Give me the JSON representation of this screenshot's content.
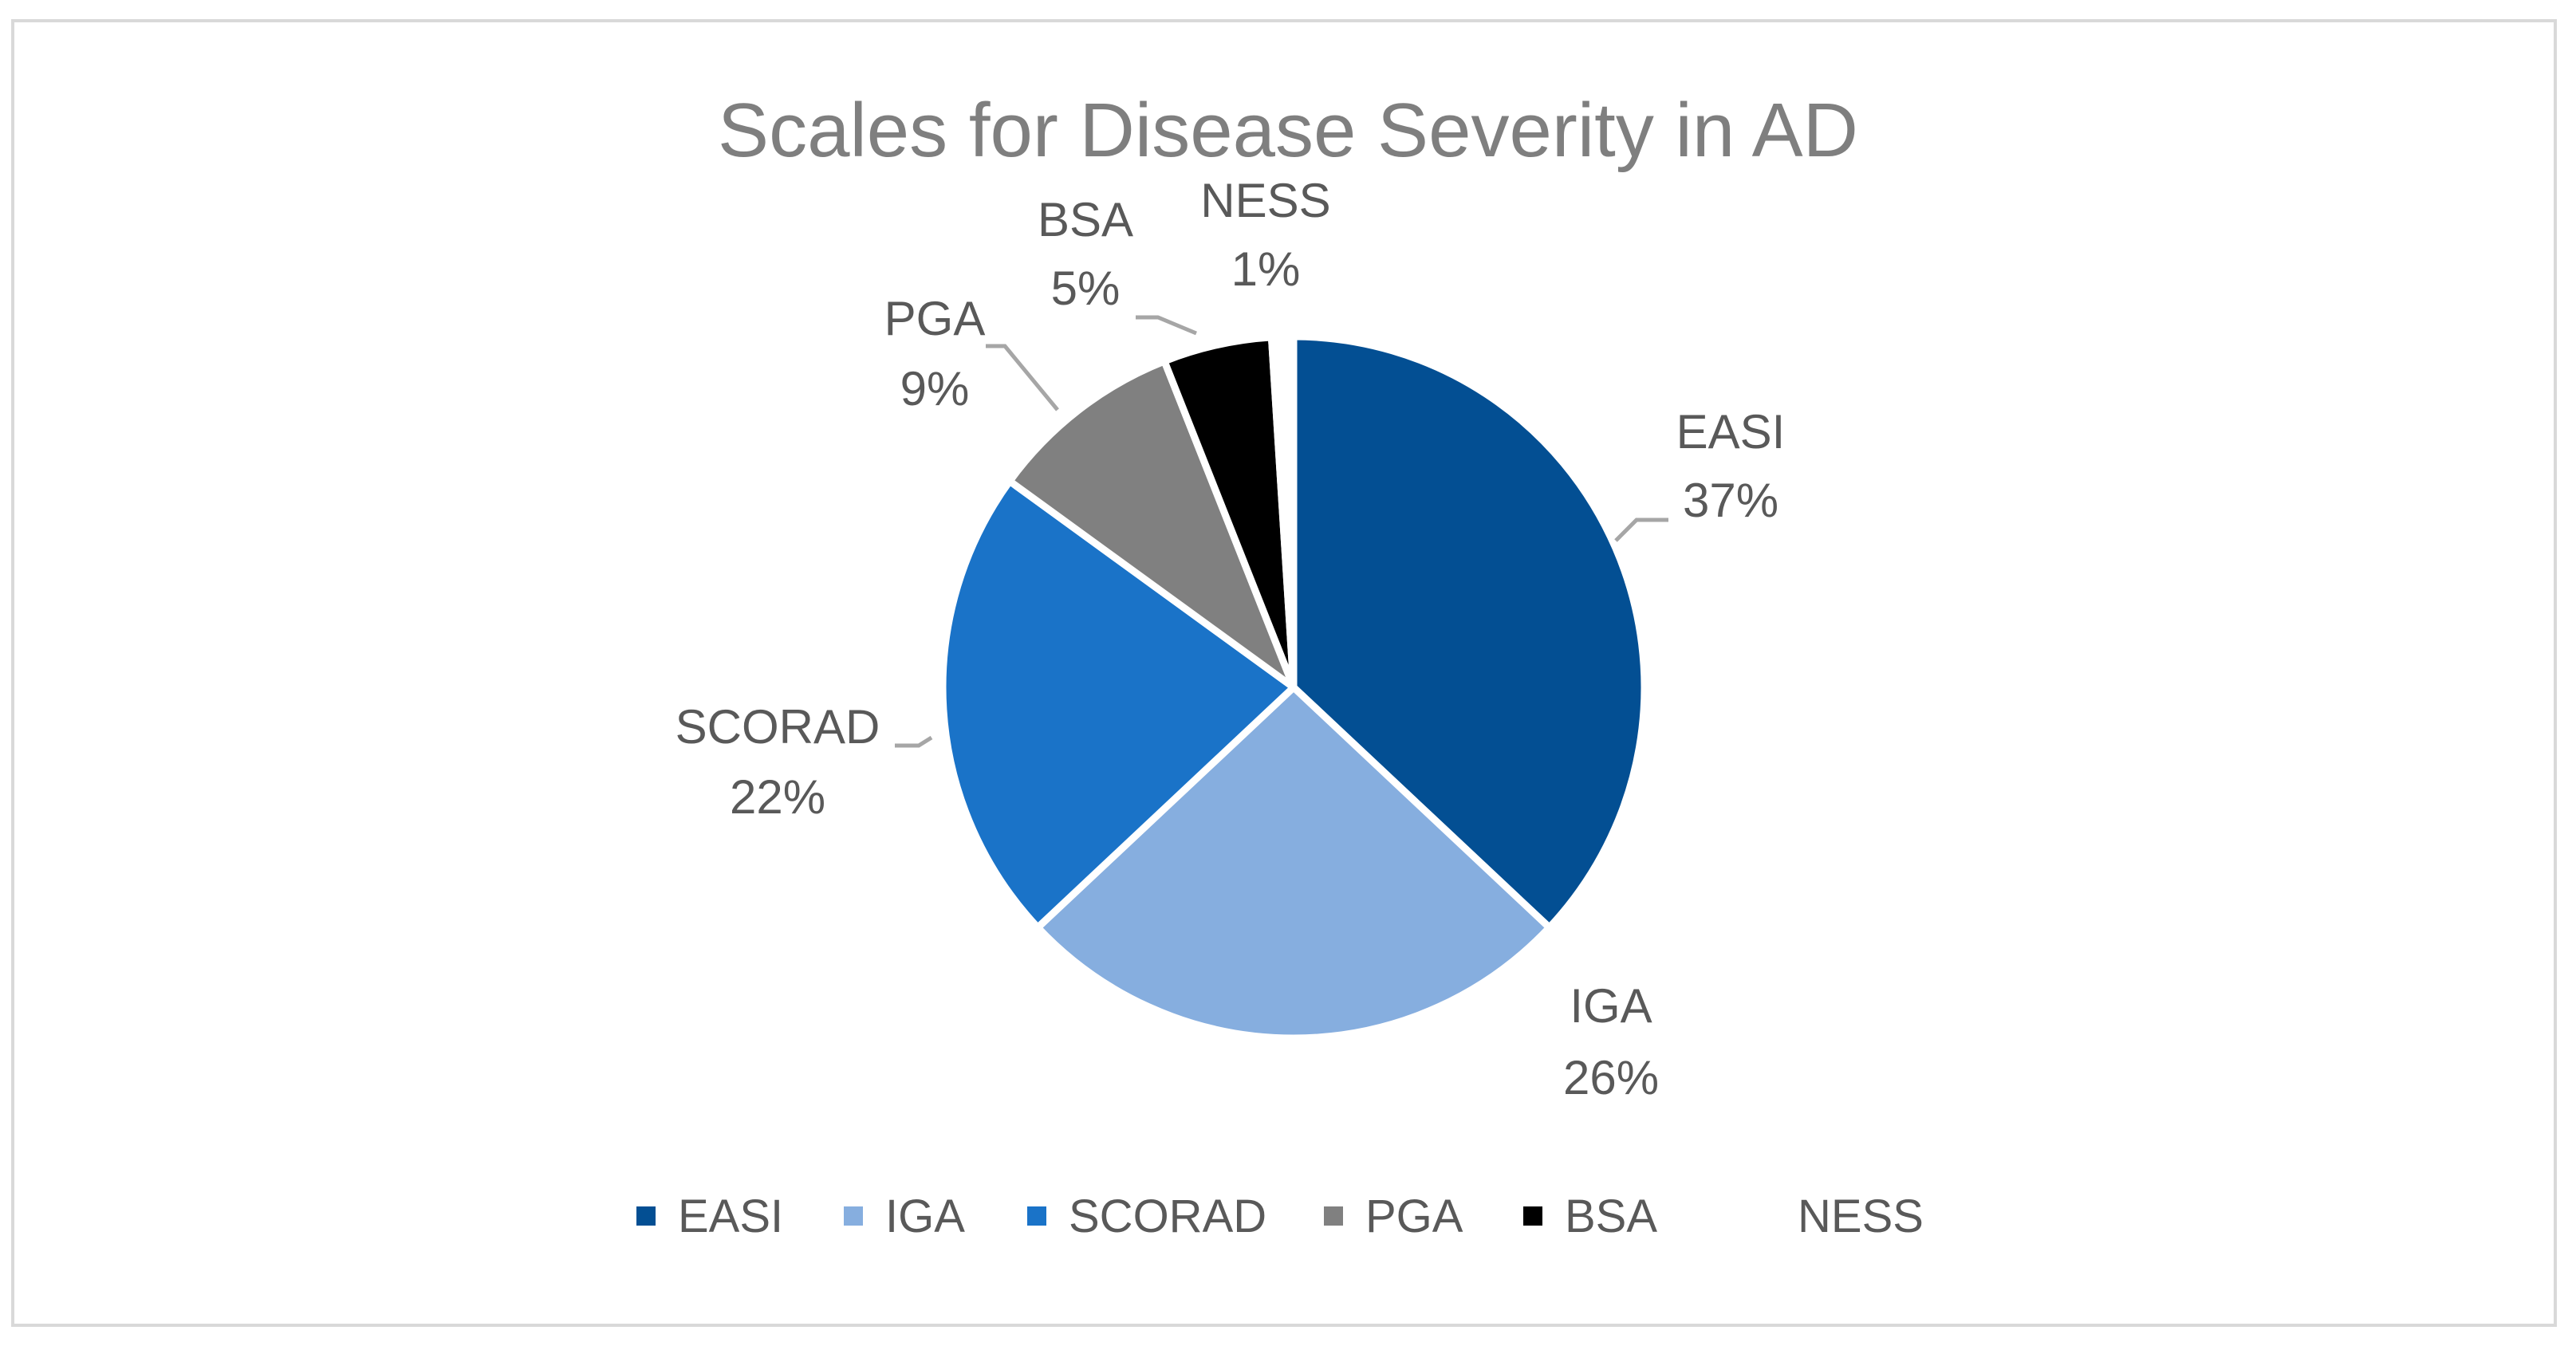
{
  "chart_data": {
    "type": "pie",
    "title": "Scales for Disease Severity in AD",
    "categories": [
      "EASI",
      "IGA",
      "SCORAD",
      "PGA",
      "BSA",
      "NESS"
    ],
    "values": [
      37,
      26,
      22,
      9,
      5,
      1
    ],
    "value_labels": [
      "37%",
      "26%",
      "22%",
      "9%",
      "5%",
      "1%"
    ],
    "colors": [
      "#034f93",
      "#86aedf",
      "#1a73c8",
      "#808080",
      "#000000",
      "#ffffff"
    ],
    "legend": {
      "position": "bottom",
      "entries": [
        "EASI",
        "IGA",
        "SCORAD",
        "PGA",
        "BSA",
        "NESS"
      ]
    },
    "data_labels": "category and percentage, outside end with leader lines"
  }
}
